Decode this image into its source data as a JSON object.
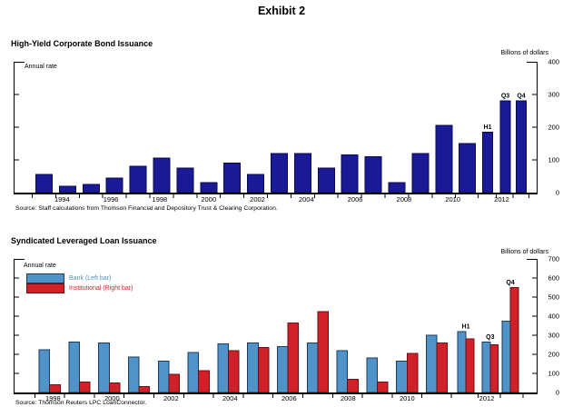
{
  "page": {
    "title": "Exhibit 2"
  },
  "chart_data": [
    {
      "type": "bar",
      "title": "High-Yield Corporate Bond Issuance",
      "unit_label": "Billions of dollars",
      "annotation": "Annual rate",
      "source": "Source: Staff calculations from Thomson Financial and Depository Trust & Clearing Corporation.",
      "categories": [
        "1993",
        "1994",
        "1995",
        "1996",
        "1997",
        "1998",
        "1999",
        "2000",
        "2001",
        "2002",
        "2003",
        "2004",
        "2005",
        "2006",
        "2007",
        "2008",
        "2009",
        "2010",
        "2011",
        "H1",
        "Q3",
        "Q4"
      ],
      "values": [
        55,
        20,
        25,
        45,
        80,
        105,
        75,
        30,
        90,
        55,
        120,
        120,
        75,
        115,
        110,
        30,
        120,
        205,
        150,
        185,
        280,
        280
      ],
      "labeled_categories": [
        "H1",
        "Q3",
        "Q4"
      ],
      "x_tick_labels": [
        "1994",
        "1996",
        "1998",
        "2000",
        "2002",
        "2004",
        "2006",
        "2008",
        "2010",
        "2012"
      ],
      "y_ticks": [
        0,
        100,
        200,
        300,
        400
      ],
      "ylim": [
        0,
        400
      ],
      "bar_color": "#1a1a96",
      "bar_border_color": "#0a0a50",
      "grid": false,
      "legend_position": "none"
    },
    {
      "type": "bar",
      "title": "Syndicated Leveraged Loan Issuance",
      "unit_label": "Billions of dollars",
      "annotation": "Annual rate",
      "source": "Source: Thomson Reuters LPC LoanConnector.",
      "categories": [
        "1998",
        "1999",
        "2000",
        "2001",
        "2002",
        "2003",
        "2004",
        "2005",
        "2006",
        "2007",
        "2008",
        "2009",
        "2010",
        "2011",
        "H1",
        "Q3",
        "Q4"
      ],
      "series": [
        {
          "name": "Bank (Left bar)",
          "color": "#4f93c9",
          "border_color": "#1b3a5e",
          "values": [
            225,
            265,
            260,
            185,
            165,
            210,
            255,
            260,
            240,
            260,
            220,
            180,
            165,
            300,
            320,
            265,
            375
          ]
        },
        {
          "name": "Institutional (Right bar)",
          "color": "#cf2127",
          "border_color": "#6b0f12",
          "values": [
            40,
            55,
            50,
            30,
            95,
            115,
            220,
            235,
            365,
            425,
            70,
            55,
            205,
            260,
            280,
            250,
            550
          ]
        }
      ],
      "labeled_categories": [
        "H1",
        "Q3",
        "Q4"
      ],
      "x_tick_labels": [
        "1998",
        "2000",
        "2002",
        "2004",
        "2006",
        "2008",
        "2010",
        "2012"
      ],
      "y_ticks": [
        0,
        100,
        200,
        300,
        400,
        500,
        600,
        700
      ],
      "ylim": [
        0,
        700
      ],
      "grid": false,
      "legend_position": "top-left"
    }
  ]
}
